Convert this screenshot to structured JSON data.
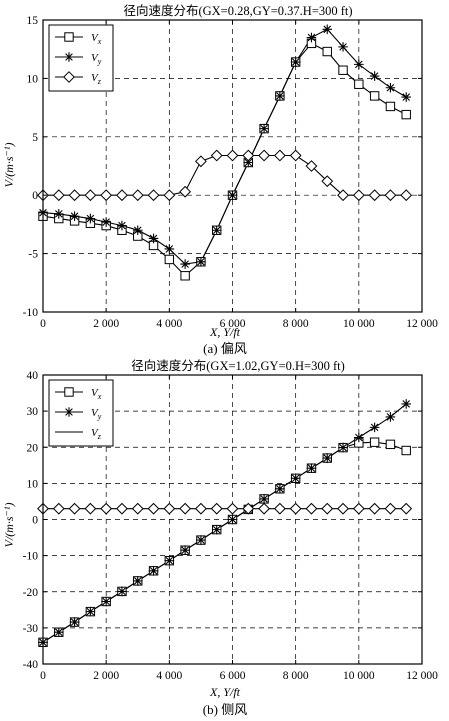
{
  "chart_data": [
    {
      "type": "line",
      "title": "径向速度分布(GX=0.28,GY=0.37.H=300 ft)",
      "xlabel": "X,  Y/ft",
      "ylabel": "V/(m·s⁻¹)",
      "caption": "(a) 偏风",
      "xlim": [
        0,
        12000
      ],
      "ylim": [
        -10,
        15
      ],
      "xticks": [
        0,
        2000,
        4000,
        6000,
        8000,
        10000,
        12000
      ],
      "xtick_labels": [
        "0",
        "2 000",
        "4 000",
        "6 000",
        "8 000",
        "10 000",
        "12 000"
      ],
      "yticks": [
        -10,
        -5,
        0,
        5,
        10,
        15
      ],
      "ytick_labels": [
        "-10",
        "-5",
        "0",
        "5",
        "10",
        "15"
      ],
      "grid": true,
      "legend_position": "top-left",
      "series": [
        {
          "name": "Vx",
          "marker": "square",
          "x": [
            0,
            500,
            1000,
            1500,
            2000,
            2500,
            3000,
            3500,
            4000,
            4500,
            5000,
            5500,
            6000,
            6500,
            7000,
            7500,
            8000,
            8500,
            9000,
            9500,
            10000,
            10500,
            11000,
            11500
          ],
          "values": [
            -1.8,
            -2.0,
            -2.2,
            -2.4,
            -2.6,
            -3.0,
            -3.5,
            -4.3,
            -5.5,
            -6.9,
            -5.7,
            -3.0,
            0.0,
            2.8,
            5.7,
            8.5,
            11.4,
            13.0,
            12.3,
            10.7,
            9.5,
            8.5,
            7.6,
            6.9
          ]
        },
        {
          "name": "Vy",
          "marker": "star",
          "x": [
            0,
            500,
            1000,
            1500,
            2000,
            2500,
            3000,
            3500,
            4000,
            4500,
            5000,
            5500,
            6000,
            6500,
            7000,
            7500,
            8000,
            8500,
            9000,
            9500,
            10000,
            10500,
            11000,
            11500
          ],
          "values": [
            -1.5,
            -1.6,
            -1.8,
            -2.0,
            -2.3,
            -2.6,
            -3.0,
            -3.7,
            -4.6,
            -5.9,
            -5.7,
            -3.0,
            0.0,
            2.8,
            5.7,
            8.5,
            11.4,
            13.5,
            14.2,
            12.7,
            11.2,
            10.2,
            9.2,
            8.4
          ]
        },
        {
          "name": "Vz",
          "marker": "diamond",
          "x": [
            0,
            500,
            1000,
            1500,
            2000,
            2500,
            3000,
            3500,
            4000,
            4500,
            5000,
            5500,
            6000,
            6500,
            7000,
            7500,
            8000,
            8500,
            9000,
            9500,
            10000,
            10500,
            11000,
            11500
          ],
          "values": [
            0,
            0,
            0,
            0,
            0,
            0,
            0,
            0,
            0,
            0.3,
            2.9,
            3.4,
            3.4,
            3.4,
            3.4,
            3.4,
            3.4,
            2.5,
            1.2,
            0,
            0,
            0,
            0,
            0
          ]
        }
      ]
    },
    {
      "type": "line",
      "title": "径向速度分布(GX=1.02,GY=0.H=300 ft)",
      "xlabel": "X,  Y/ft",
      "ylabel": "V/(m·s⁻¹)",
      "caption": "(b) 侧风",
      "xlim": [
        0,
        12000
      ],
      "ylim": [
        -40,
        40
      ],
      "xticks": [
        0,
        2000,
        4000,
        6000,
        8000,
        10000,
        12000
      ],
      "xtick_labels": [
        "0",
        "2 000",
        "4 000",
        "6 000",
        "8 000",
        "10 000",
        "12 000"
      ],
      "yticks": [
        -40,
        -30,
        -20,
        -10,
        0,
        10,
        20,
        30,
        40
      ],
      "ytick_labels": [
        "-40",
        "-30",
        "-20",
        "-10",
        "0",
        "10",
        "20",
        "30",
        "40"
      ],
      "grid": true,
      "legend_position": "top-left",
      "series": [
        {
          "name": "Vx",
          "marker": "square",
          "x": [
            0,
            500,
            1000,
            1500,
            2000,
            2500,
            3000,
            3500,
            4000,
            4500,
            5000,
            5500,
            6000,
            6500,
            7000,
            7500,
            8000,
            8500,
            9000,
            9500,
            10000,
            10500,
            11000,
            11500
          ],
          "values": [
            -34,
            -31.2,
            -28.4,
            -25.5,
            -22.7,
            -19.9,
            -17.0,
            -14.2,
            -11.4,
            -8.5,
            -5.7,
            -2.8,
            0,
            2.8,
            5.7,
            8.5,
            11.4,
            14.2,
            17.0,
            19.9,
            21.2,
            21.4,
            20.8,
            19.1
          ]
        },
        {
          "name": "Vy",
          "marker": "star",
          "x": [
            0,
            500,
            1000,
            1500,
            2000,
            2500,
            3000,
            3500,
            4000,
            4500,
            5000,
            5500,
            6000,
            6500,
            7000,
            7500,
            8000,
            8500,
            9000,
            9500,
            10000,
            10500,
            11000,
            11500
          ],
          "values": [
            -34,
            -31.2,
            -28.4,
            -25.5,
            -22.7,
            -19.9,
            -17.0,
            -14.2,
            -11.4,
            -8.5,
            -5.7,
            -2.8,
            0,
            2.8,
            5.7,
            8.5,
            11.4,
            14.2,
            17.0,
            19.9,
            22.7,
            25.5,
            28.4,
            32.0
          ]
        },
        {
          "name": "Vz",
          "marker": "diamond",
          "x": [
            0,
            500,
            1000,
            1500,
            2000,
            2500,
            3000,
            3500,
            4000,
            4500,
            5000,
            5500,
            6000,
            6500,
            7000,
            7500,
            8000,
            8500,
            9000,
            9500,
            10000,
            10500,
            11000,
            11500
          ],
          "values": [
            3,
            3,
            3,
            3,
            3,
            3,
            3,
            3,
            3,
            3,
            3,
            3,
            3,
            3,
            3,
            3,
            3,
            3,
            3,
            3,
            3,
            3,
            3,
            3
          ]
        }
      ]
    }
  ]
}
